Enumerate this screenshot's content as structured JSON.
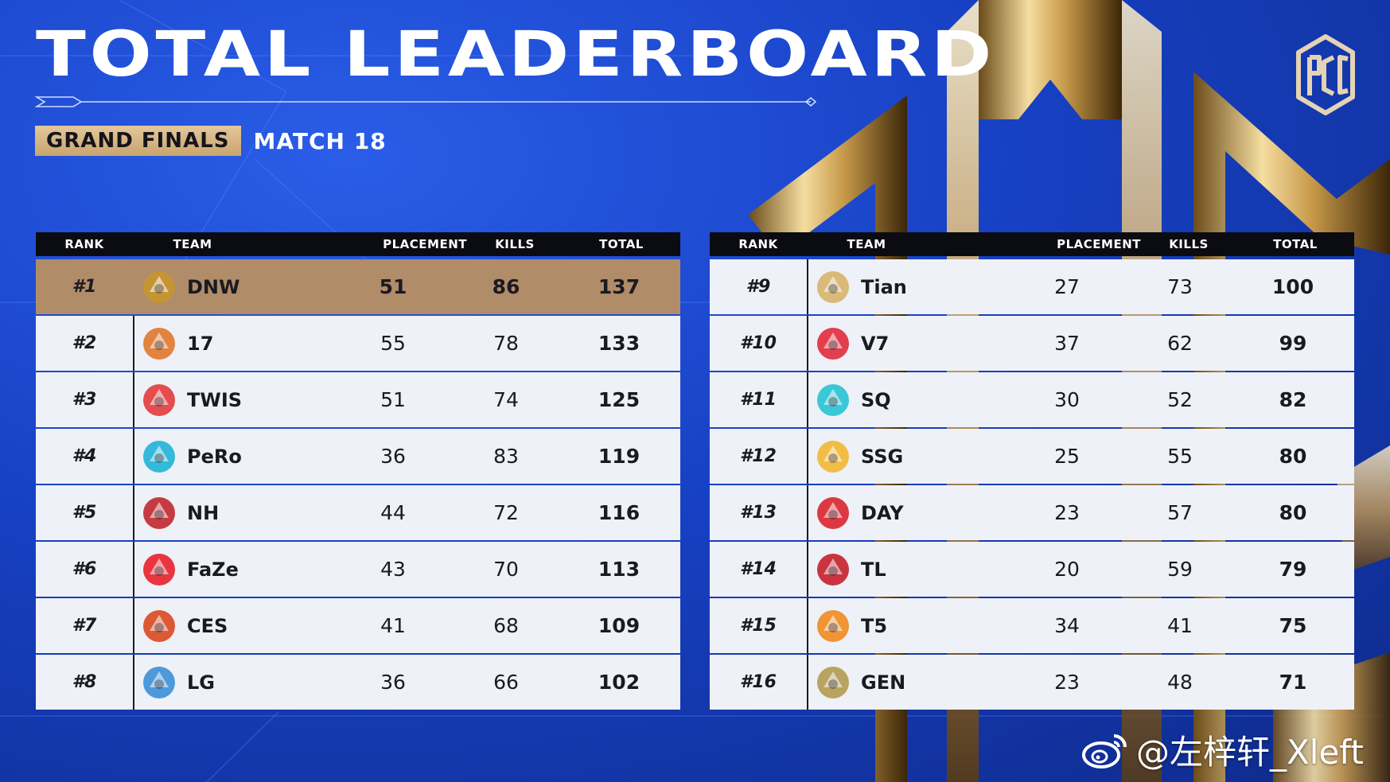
{
  "title": "TOTAL LEADERBOARD",
  "stage_label": "GRAND FINALS",
  "match_label": "MATCH 18",
  "brand_logo_name": "pgc-logo-icon",
  "columns": {
    "rank": "RANK",
    "team": "TEAM",
    "placement": "PLACEMENT",
    "kills": "KILLS",
    "total": "TOTAL"
  },
  "colors": {
    "background": "#1741c4",
    "header": "#0b0b12",
    "row": "#eef1f7",
    "leader_row": "#b08c69",
    "gold_badge": "#d6b587"
  },
  "left_board": [
    {
      "rank": "#1",
      "team": "DNW",
      "placement": "51",
      "kills": "86",
      "total": "137",
      "logo": "dnw-logo-icon",
      "color": "#c8952f"
    },
    {
      "rank": "#2",
      "team": "17",
      "placement": "55",
      "kills": "78",
      "total": "133",
      "logo": "17-gaming-logo-icon",
      "color": "#e0772a"
    },
    {
      "rank": "#3",
      "team": "TWIS",
      "placement": "51",
      "kills": "74",
      "total": "125",
      "logo": "twis-logo-icon",
      "color": "#e23a3a"
    },
    {
      "rank": "#4",
      "team": "PeRo",
      "placement": "36",
      "kills": "83",
      "total": "119",
      "logo": "pero-logo-icon",
      "color": "#1fb2d6"
    },
    {
      "rank": "#5",
      "team": "NH",
      "placement": "44",
      "kills": "72",
      "total": "116",
      "logo": "nh-logo-icon",
      "color": "#c1272d"
    },
    {
      "rank": "#6",
      "team": "FaZe",
      "placement": "43",
      "kills": "70",
      "total": "113",
      "logo": "faze-logo-icon",
      "color": "#e8202a"
    },
    {
      "rank": "#7",
      "team": "CES",
      "placement": "41",
      "kills": "68",
      "total": "109",
      "logo": "ces-logo-icon",
      "color": "#d9481f"
    },
    {
      "rank": "#8",
      "team": "LG",
      "placement": "36",
      "kills": "66",
      "total": "102",
      "logo": "lg-logo-icon",
      "color": "#3c8fd6"
    }
  ],
  "right_board": [
    {
      "rank": "#9",
      "team": "Tian",
      "placement": "27",
      "kills": "73",
      "total": "100",
      "logo": "tian-logo-icon",
      "color": "#d7b26a"
    },
    {
      "rank": "#10",
      "team": "V7",
      "placement": "37",
      "kills": "62",
      "total": "99",
      "logo": "v7-logo-icon",
      "color": "#e02a3a"
    },
    {
      "rank": "#11",
      "team": "SQ",
      "placement": "30",
      "kills": "52",
      "total": "82",
      "logo": "sq-logo-icon",
      "color": "#26c3d3"
    },
    {
      "rank": "#12",
      "team": "SSG",
      "placement": "25",
      "kills": "55",
      "total": "80",
      "logo": "ssg-logo-icon",
      "color": "#f2b731"
    },
    {
      "rank": "#13",
      "team": "DAY",
      "placement": "23",
      "kills": "57",
      "total": "80",
      "logo": "day-logo-icon",
      "color": "#d9232e"
    },
    {
      "rank": "#14",
      "team": "TL",
      "placement": "20",
      "kills": "59",
      "total": "79",
      "logo": "tyloo-logo-icon",
      "color": "#c51f2b"
    },
    {
      "rank": "#15",
      "team": "T5",
      "placement": "34",
      "kills": "41",
      "total": "75",
      "logo": "t5-logo-icon",
      "color": "#f08a1e"
    },
    {
      "rank": "#16",
      "team": "GEN",
      "placement": "23",
      "kills": "48",
      "total": "71",
      "logo": "gen-logo-icon",
      "color": "#b39a50"
    }
  ],
  "watermark": "@左梓轩_Xleft"
}
